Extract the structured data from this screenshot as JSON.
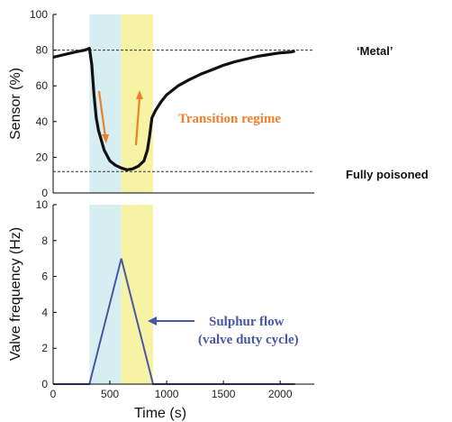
{
  "colors": {
    "cyan_band": "#d6eef2",
    "yellow_band": "#f7f3a4",
    "sensor_line": "#111111",
    "valve_line": "#4a56a6",
    "orange": "#f07f2a",
    "blue_text": "#4a56a6"
  },
  "chart_data": [
    {
      "type": "line",
      "panel": "top",
      "title": "",
      "xlabel": "",
      "ylabel": "Sensor (%)",
      "xlim": [
        0,
        2300
      ],
      "ylim": [
        0,
        100
      ],
      "yticks": [
        0,
        20,
        40,
        60,
        80,
        100
      ],
      "ytick_labels": [
        "0",
        "20",
        "40",
        "60",
        "80",
        "100"
      ],
      "grid": false,
      "shaded_regions": [
        {
          "x0": 320,
          "x1": 600,
          "color": "cyan"
        },
        {
          "x0": 600,
          "x1": 880,
          "color": "yellow"
        }
      ],
      "reference_lines": [
        {
          "y": 80,
          "label": "‘Metal’"
        },
        {
          "y": 12,
          "label": "Fully  poisoned"
        }
      ],
      "series": [
        {
          "x": [
            0,
            100,
            200,
            280,
            320,
            340,
            360,
            380,
            400,
            450,
            500,
            550,
            600,
            650,
            700,
            750,
            800,
            830,
            850,
            870,
            900,
            950,
            1000,
            1100,
            1200,
            1300,
            1400,
            1500,
            1600,
            1700,
            1800,
            1900,
            2000,
            2100,
            2130
          ],
          "y": [
            76,
            77.5,
            79,
            80,
            81,
            72,
            55,
            42,
            35,
            24,
            18,
            15.5,
            14,
            13,
            13.5,
            15,
            18,
            24,
            32,
            42,
            46,
            51,
            55,
            60,
            63.5,
            66.5,
            69,
            71.5,
            73.5,
            75,
            76.5,
            77.5,
            78.5,
            79,
            79.5
          ]
        }
      ],
      "annotations": [
        {
          "text": "Transition regime",
          "color": "orange"
        }
      ]
    },
    {
      "type": "line",
      "panel": "bottom",
      "title": "",
      "xlabel": "Time (s)",
      "ylabel": "Valve frequency (Hz)",
      "xlim": [
        0,
        2300
      ],
      "ylim": [
        0,
        10
      ],
      "xticks": [
        0,
        500,
        1000,
        1500,
        2000
      ],
      "xtick_labels": [
        "0",
        "500",
        "1000",
        "1500",
        "2000"
      ],
      "yticks": [
        0,
        2,
        4,
        6,
        8,
        10
      ],
      "ytick_labels": [
        "0",
        "2",
        "4",
        "6",
        "8",
        "10"
      ],
      "grid": false,
      "shaded_regions": [
        {
          "x0": 320,
          "x1": 600,
          "color": "cyan"
        },
        {
          "x0": 600,
          "x1": 880,
          "color": "yellow"
        }
      ],
      "series": [
        {
          "x": [
            0,
            320,
            600,
            880,
            2130
          ],
          "y": [
            0,
            0,
            7,
            0,
            0
          ]
        }
      ],
      "annotations": [
        {
          "line1": "Sulphur flow",
          "line2": "(valve duty cycle)",
          "color": "blue"
        }
      ]
    }
  ]
}
